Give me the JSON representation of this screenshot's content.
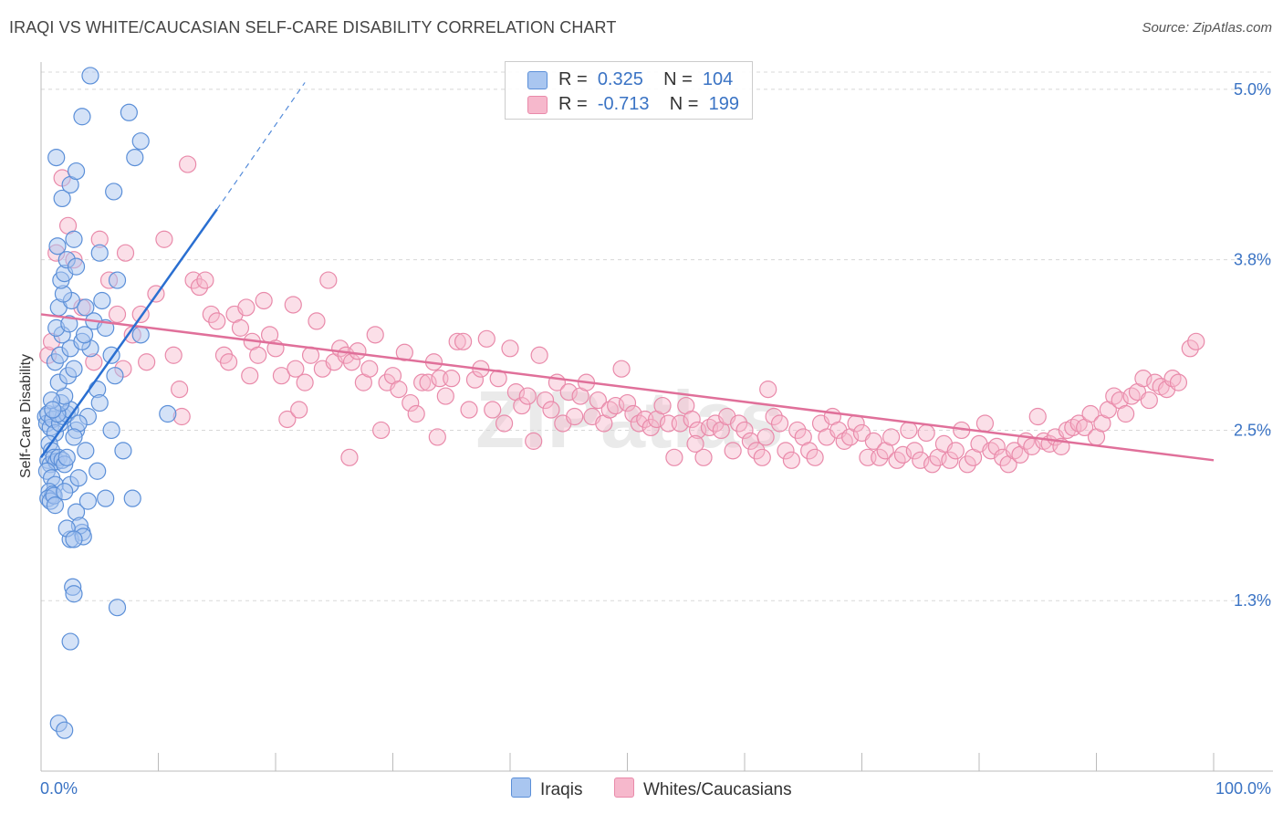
{
  "title": "IRAQI VS WHITE/CAUCASIAN SELF-CARE DISABILITY CORRELATION CHART",
  "source": "Source: ZipAtlas.com",
  "watermark": "ZIPatlas",
  "legend": {
    "rows": [
      {
        "r_label": "R =",
        "r_value": "0.325",
        "n_label": "N =",
        "n_value": "104"
      },
      {
        "r_label": "R =",
        "r_value": "-0.713",
        "n_label": "N =",
        "n_value": "199"
      }
    ]
  },
  "bottom_legend": {
    "iraqis": "Iraqis",
    "whites": "Whites/Caucasians"
  },
  "colors": {
    "blue_fill": "#a9c6f0",
    "blue_stroke": "#5b8fd8",
    "blue_line": "#2a6fd1",
    "pink_fill": "#f6b8cc",
    "pink_stroke": "#e98aaa",
    "pink_line": "#e0709a",
    "axis_label": "#3a73c4",
    "grid": "#d8d8d8"
  },
  "chart_data": {
    "type": "scatter",
    "title": "IRAQI VS WHITE/CAUCASIAN SELF-CARE DISABILITY CORRELATION CHART",
    "xlabel": "",
    "ylabel": "Self-Care Disability",
    "xlim": [
      0,
      100
    ],
    "ylim": [
      0,
      5.2
    ],
    "x_tick_labels": [
      "0.0%",
      "100.0%"
    ],
    "y_ticks": [
      1.25,
      2.5,
      3.75,
      5.0
    ],
    "y_tick_labels": [
      "1.3%",
      "2.5%",
      "3.8%",
      "5.0%"
    ],
    "grid": true,
    "legend_position": "top-center",
    "series": [
      {
        "name": "Iraqis",
        "r": 0.325,
        "n": 104,
        "trend": {
          "x1": 0,
          "y1": 2.3,
          "x2": 15,
          "y2": 4.12,
          "dashed_to_x": 22.5,
          "dashed_to_y": 5.05
        },
        "points": [
          [
            0.4,
            2.6
          ],
          [
            0.5,
            2.55
          ],
          [
            0.6,
            2.62
          ],
          [
            0.8,
            2.52
          ],
          [
            1.0,
            2.58
          ],
          [
            1.2,
            2.48
          ],
          [
            0.7,
            2.4
          ],
          [
            0.9,
            2.35
          ],
          [
            0.6,
            2.28
          ],
          [
            0.8,
            2.25
          ],
          [
            1.1,
            2.3
          ],
          [
            1.3,
            2.27
          ],
          [
            0.5,
            2.2
          ],
          [
            0.9,
            2.15
          ],
          [
            1.2,
            2.1
          ],
          [
            0.7,
            2.05
          ],
          [
            1.0,
            2.03
          ],
          [
            0.6,
            2.0
          ],
          [
            0.8,
            1.98
          ],
          [
            1.1,
            2.02
          ],
          [
            1.5,
            2.3
          ],
          [
            1.8,
            2.28
          ],
          [
            2.0,
            2.25
          ],
          [
            2.2,
            2.3
          ],
          [
            1.6,
            2.55
          ],
          [
            1.9,
            2.6
          ],
          [
            2.2,
            2.62
          ],
          [
            2.5,
            2.65
          ],
          [
            1.4,
            2.62
          ],
          [
            1.7,
            2.7
          ],
          [
            2.0,
            2.75
          ],
          [
            1.5,
            2.85
          ],
          [
            2.3,
            2.9
          ],
          [
            1.2,
            3.0
          ],
          [
            1.6,
            3.05
          ],
          [
            2.5,
            3.1
          ],
          [
            1.8,
            3.2
          ],
          [
            1.3,
            3.25
          ],
          [
            2.4,
            3.28
          ],
          [
            1.5,
            3.4
          ],
          [
            2.6,
            3.45
          ],
          [
            1.9,
            3.5
          ],
          [
            1.7,
            3.6
          ],
          [
            2.0,
            3.65
          ],
          [
            2.2,
            3.75
          ],
          [
            1.4,
            3.85
          ],
          [
            2.8,
            3.9
          ],
          [
            1.8,
            4.2
          ],
          [
            2.5,
            4.3
          ],
          [
            3.0,
            4.4
          ],
          [
            1.3,
            4.5
          ],
          [
            3.5,
            4.8
          ],
          [
            4.2,
            5.1
          ],
          [
            5.0,
            3.8
          ],
          [
            3.0,
            3.7
          ],
          [
            3.8,
            3.4
          ],
          [
            4.5,
            3.3
          ],
          [
            5.5,
            3.25
          ],
          [
            6.0,
            3.05
          ],
          [
            4.2,
            3.1
          ],
          [
            3.5,
            3.15
          ],
          [
            3.7,
            3.2
          ],
          [
            2.8,
            2.95
          ],
          [
            5.2,
            3.45
          ],
          [
            6.0,
            2.5
          ],
          [
            4.8,
            2.8
          ],
          [
            8.0,
            4.5
          ],
          [
            8.5,
            4.62
          ],
          [
            7.5,
            4.83
          ],
          [
            6.2,
            4.25
          ],
          [
            6.5,
            3.6
          ],
          [
            3.0,
            2.5
          ],
          [
            3.8,
            2.35
          ],
          [
            2.5,
            2.1
          ],
          [
            3.2,
            2.15
          ],
          [
            2.0,
            2.05
          ],
          [
            1.2,
            1.95
          ],
          [
            3.0,
            1.9
          ],
          [
            5.5,
            2.0
          ],
          [
            7.8,
            2.0
          ],
          [
            4.0,
            1.98
          ],
          [
            3.5,
            1.75
          ],
          [
            2.5,
            1.7
          ],
          [
            3.3,
            1.8
          ],
          [
            2.2,
            1.78
          ],
          [
            3.6,
            1.72
          ],
          [
            2.8,
            1.7
          ],
          [
            2.7,
            1.35
          ],
          [
            2.8,
            1.3
          ],
          [
            10.8,
            2.62
          ],
          [
            8.5,
            3.2
          ],
          [
            6.3,
            2.9
          ],
          [
            5.0,
            2.7
          ],
          [
            4.0,
            2.6
          ],
          [
            3.2,
            2.55
          ],
          [
            2.8,
            2.45
          ],
          [
            0.9,
            2.72
          ],
          [
            1.0,
            2.65
          ],
          [
            7.0,
            2.35
          ],
          [
            6.5,
            1.2
          ],
          [
            2.5,
            0.95
          ],
          [
            1.5,
            0.35
          ],
          [
            2.0,
            0.3
          ],
          [
            4.8,
            2.2
          ]
        ]
      },
      {
        "name": "Whites/Caucasians",
        "r": -0.713,
        "n": 199,
        "trend": {
          "x1": 0,
          "y1": 3.35,
          "x2": 100,
          "y2": 2.28
        },
        "points": [
          [
            0.6,
            3.05
          ],
          [
            0.9,
            3.15
          ],
          [
            1.3,
            3.8
          ],
          [
            1.8,
            4.35
          ],
          [
            2.3,
            4.0
          ],
          [
            2.8,
            3.75
          ],
          [
            3.5,
            3.4
          ],
          [
            4.5,
            3.0
          ],
          [
            5.0,
            3.9
          ],
          [
            5.8,
            3.6
          ],
          [
            6.5,
            3.35
          ],
          [
            7.2,
            3.8
          ],
          [
            7.8,
            3.2
          ],
          [
            8.5,
            3.35
          ],
          [
            9.0,
            3.0
          ],
          [
            9.8,
            3.5
          ],
          [
            10.5,
            3.9
          ],
          [
            11.3,
            3.05
          ],
          [
            11.8,
            2.8
          ],
          [
            12.5,
            4.45
          ],
          [
            13.0,
            3.6
          ],
          [
            13.5,
            3.55
          ],
          [
            14.0,
            3.6
          ],
          [
            14.5,
            3.35
          ],
          [
            15.0,
            3.3
          ],
          [
            15.6,
            3.05
          ],
          [
            16.0,
            3.0
          ],
          [
            16.5,
            3.35
          ],
          [
            17.0,
            3.25
          ],
          [
            17.5,
            3.4
          ],
          [
            18.0,
            3.15
          ],
          [
            18.5,
            3.05
          ],
          [
            19.0,
            3.45
          ],
          [
            19.5,
            3.2
          ],
          [
            20.0,
            3.1
          ],
          [
            20.5,
            2.9
          ],
          [
            21.0,
            2.58
          ],
          [
            21.5,
            3.42
          ],
          [
            22.0,
            2.65
          ],
          [
            22.5,
            2.85
          ],
          [
            23.0,
            3.05
          ],
          [
            23.5,
            3.3
          ],
          [
            24.0,
            2.95
          ],
          [
            24.5,
            3.6
          ],
          [
            25.0,
            3.0
          ],
          [
            25.5,
            3.1
          ],
          [
            26.0,
            3.05
          ],
          [
            26.5,
            3.0
          ],
          [
            27.0,
            3.08
          ],
          [
            27.5,
            2.85
          ],
          [
            28.0,
            2.95
          ],
          [
            28.5,
            3.2
          ],
          [
            29.0,
            2.5
          ],
          [
            29.5,
            2.85
          ],
          [
            30.0,
            2.9
          ],
          [
            30.5,
            2.8
          ],
          [
            31.0,
            3.07
          ],
          [
            31.5,
            2.7
          ],
          [
            32.0,
            2.62
          ],
          [
            32.5,
            2.85
          ],
          [
            33.0,
            2.85
          ],
          [
            33.5,
            3.0
          ],
          [
            34.0,
            2.88
          ],
          [
            34.5,
            2.75
          ],
          [
            35.0,
            2.88
          ],
          [
            35.5,
            3.15
          ],
          [
            36.0,
            3.15
          ],
          [
            36.5,
            2.65
          ],
          [
            37.0,
            2.87
          ],
          [
            37.5,
            2.95
          ],
          [
            38.0,
            3.17
          ],
          [
            38.5,
            2.65
          ],
          [
            39.0,
            2.88
          ],
          [
            39.5,
            2.55
          ],
          [
            40.0,
            3.1
          ],
          [
            40.5,
            2.78
          ],
          [
            41.0,
            2.68
          ],
          [
            41.5,
            2.75
          ],
          [
            42.0,
            2.42
          ],
          [
            42.5,
            3.05
          ],
          [
            43.0,
            2.72
          ],
          [
            43.5,
            2.65
          ],
          [
            44.0,
            2.85
          ],
          [
            44.5,
            2.55
          ],
          [
            45.0,
            2.78
          ],
          [
            45.5,
            2.6
          ],
          [
            46.0,
            2.75
          ],
          [
            46.5,
            2.85
          ],
          [
            47.0,
            2.6
          ],
          [
            47.5,
            2.72
          ],
          [
            48.0,
            2.55
          ],
          [
            48.5,
            2.65
          ],
          [
            49.0,
            2.68
          ],
          [
            49.5,
            2.95
          ],
          [
            50.0,
            2.7
          ],
          [
            50.5,
            2.62
          ],
          [
            51.0,
            2.55
          ],
          [
            51.5,
            2.58
          ],
          [
            52.0,
            2.52
          ],
          [
            52.5,
            2.58
          ],
          [
            53.0,
            2.68
          ],
          [
            53.5,
            2.55
          ],
          [
            54.0,
            2.3
          ],
          [
            54.5,
            2.55
          ],
          [
            55.0,
            2.68
          ],
          [
            55.5,
            2.58
          ],
          [
            56.0,
            2.5
          ],
          [
            56.5,
            2.3
          ],
          [
            57.0,
            2.52
          ],
          [
            57.5,
            2.55
          ],
          [
            58.0,
            2.5
          ],
          [
            58.5,
            2.6
          ],
          [
            59.0,
            2.35
          ],
          [
            59.5,
            2.55
          ],
          [
            60.0,
            2.5
          ],
          [
            60.5,
            2.42
          ],
          [
            61.0,
            2.35
          ],
          [
            61.5,
            2.3
          ],
          [
            62.0,
            2.8
          ],
          [
            62.5,
            2.6
          ],
          [
            63.0,
            2.55
          ],
          [
            63.5,
            2.35
          ],
          [
            64.0,
            2.28
          ],
          [
            64.5,
            2.5
          ],
          [
            65.0,
            2.45
          ],
          [
            65.5,
            2.35
          ],
          [
            66.0,
            2.3
          ],
          [
            66.5,
            2.55
          ],
          [
            67.0,
            2.45
          ],
          [
            67.5,
            2.6
          ],
          [
            68.0,
            2.5
          ],
          [
            68.5,
            2.42
          ],
          [
            69.0,
            2.45
          ],
          [
            69.5,
            2.55
          ],
          [
            70.0,
            2.48
          ],
          [
            70.5,
            2.3
          ],
          [
            71.0,
            2.42
          ],
          [
            71.5,
            2.3
          ],
          [
            72.0,
            2.35
          ],
          [
            72.5,
            2.45
          ],
          [
            73.0,
            2.28
          ],
          [
            73.5,
            2.32
          ],
          [
            74.0,
            2.5
          ],
          [
            74.5,
            2.35
          ],
          [
            75.0,
            2.28
          ],
          [
            75.5,
            2.48
          ],
          [
            76.0,
            2.25
          ],
          [
            76.5,
            2.3
          ],
          [
            77.0,
            2.4
          ],
          [
            77.5,
            2.28
          ],
          [
            78.0,
            2.35
          ],
          [
            78.5,
            2.5
          ],
          [
            79.0,
            2.25
          ],
          [
            79.5,
            2.3
          ],
          [
            80.0,
            2.4
          ],
          [
            80.5,
            2.55
          ],
          [
            81.0,
            2.35
          ],
          [
            81.5,
            2.38
          ],
          [
            82.0,
            2.3
          ],
          [
            82.5,
            2.25
          ],
          [
            83.0,
            2.35
          ],
          [
            83.5,
            2.32
          ],
          [
            84.0,
            2.42
          ],
          [
            84.5,
            2.38
          ],
          [
            85.0,
            2.6
          ],
          [
            85.5,
            2.42
          ],
          [
            86.0,
            2.4
          ],
          [
            86.5,
            2.45
          ],
          [
            87.0,
            2.38
          ],
          [
            87.5,
            2.5
          ],
          [
            88.0,
            2.52
          ],
          [
            88.5,
            2.55
          ],
          [
            89.0,
            2.52
          ],
          [
            89.5,
            2.62
          ],
          [
            90.0,
            2.45
          ],
          [
            90.5,
            2.55
          ],
          [
            91.0,
            2.65
          ],
          [
            91.5,
            2.75
          ],
          [
            92.0,
            2.72
          ],
          [
            92.5,
            2.62
          ],
          [
            93.0,
            2.75
          ],
          [
            93.5,
            2.78
          ],
          [
            94.0,
            2.88
          ],
          [
            94.5,
            2.72
          ],
          [
            95.0,
            2.85
          ],
          [
            95.5,
            2.82
          ],
          [
            96.0,
            2.8
          ],
          [
            96.5,
            2.88
          ],
          [
            97.0,
            2.85
          ],
          [
            98.0,
            3.1
          ],
          [
            98.5,
            3.15
          ],
          [
            61.8,
            2.45
          ],
          [
            55.8,
            2.4
          ],
          [
            26.3,
            2.3
          ],
          [
            12.0,
            2.6
          ],
          [
            17.8,
            2.9
          ],
          [
            21.7,
            2.95
          ],
          [
            7.0,
            2.95
          ],
          [
            33.8,
            2.45
          ]
        ]
      }
    ]
  }
}
